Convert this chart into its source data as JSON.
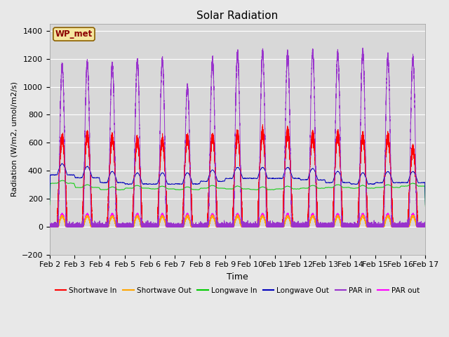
{
  "title": "Solar Radiation",
  "ylabel": "Radiation (W/m2, umol/m2/s)",
  "xlabel": "Time",
  "xlim_start": 0,
  "xlim_end": 15,
  "ylim": [
    -200,
    1450
  ],
  "yticks": [
    -200,
    0,
    200,
    400,
    600,
    800,
    1000,
    1200,
    1400
  ],
  "xtick_labels": [
    "Feb 2",
    "Feb 3",
    "Feb 4",
    "Feb 5",
    "Feb 6",
    "Feb 7",
    "Feb 8",
    "Feb 9",
    "Feb 10",
    "Feb 11",
    "Feb 12",
    "Feb 13",
    "Feb 14",
    "Feb 15",
    "Feb 16",
    "Feb 17"
  ],
  "label_box_text": "WP_met",
  "label_box_color": "#f5e6a0",
  "label_box_edge": "#8b6000",
  "figure_bg": "#e8e8e8",
  "plot_bg_color": "#d8d8d8",
  "colors": {
    "shortwave_in": "#ff0000",
    "shortwave_out": "#ffa500",
    "longwave_in": "#00cc00",
    "longwave_out": "#0000bb",
    "par_in": "#9933cc",
    "par_out": "#ff00ff"
  },
  "legend": [
    {
      "label": "Shortwave In",
      "color": "#ff0000"
    },
    {
      "label": "Shortwave Out",
      "color": "#ffa500"
    },
    {
      "label": "Longwave In",
      "color": "#00cc00"
    },
    {
      "label": "Longwave Out",
      "color": "#0000bb"
    },
    {
      "label": "PAR in",
      "color": "#9933cc"
    },
    {
      "label": "PAR out",
      "color": "#ff00ff"
    }
  ],
  "n_days": 15,
  "pts_per_day": 1440,
  "sw_in_peaks": [
    630,
    650,
    630,
    610,
    620,
    625,
    640,
    660,
    670,
    670,
    650,
    650,
    645,
    635,
    560
  ],
  "par_in_peaks": [
    1150,
    1170,
    1155,
    1185,
    1190,
    1000,
    1190,
    1235,
    1250,
    1240,
    1250,
    1235,
    1250,
    1210,
    1200
  ],
  "lw_in_base": [
    310,
    280,
    265,
    275,
    270,
    265,
    275,
    270,
    265,
    270,
    275,
    280,
    275,
    280,
    290
  ],
  "lw_out_base": [
    370,
    350,
    315,
    305,
    305,
    305,
    325,
    345,
    345,
    345,
    335,
    315,
    305,
    315,
    315
  ],
  "day_start": 0.3,
  "day_end": 0.7,
  "par_halfwidth": 0.06
}
